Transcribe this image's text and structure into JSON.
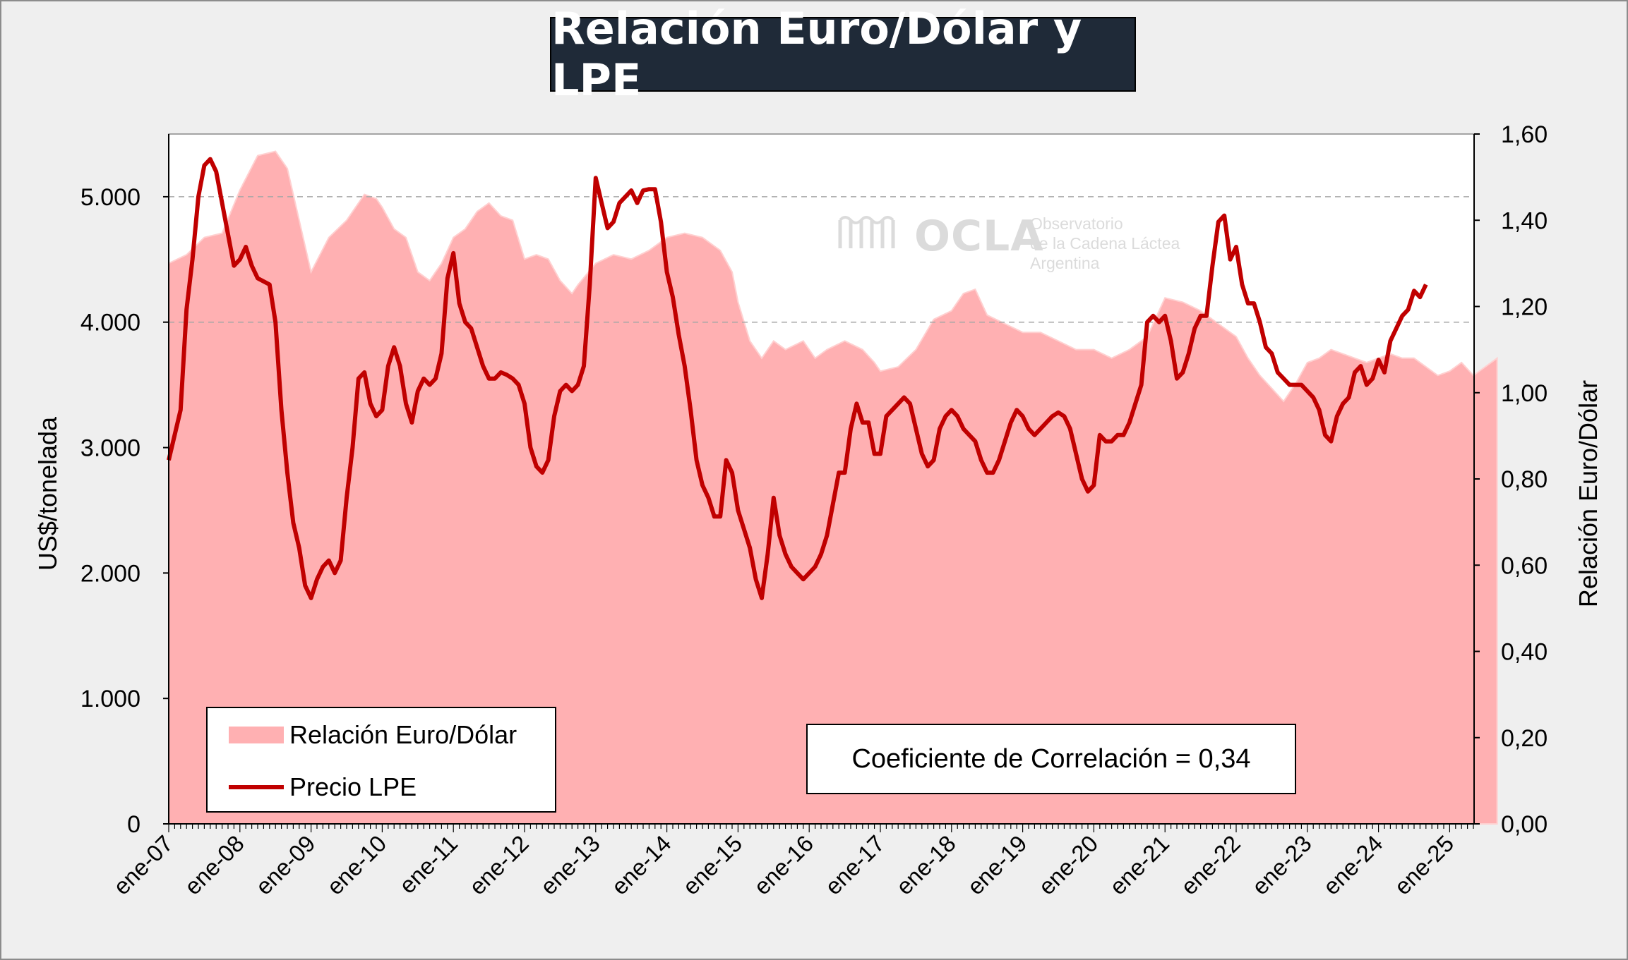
{
  "title": "Relación Euro/Dólar y LPE",
  "watermark": {
    "name": "OCLA",
    "line1": "Observatorio",
    "line2": "de la Cadena Láctea",
    "line3": "Argentina"
  },
  "legend": {
    "area_label": "Relación Euro/Dólar",
    "line_label": "Precio LPE"
  },
  "annotation": "Coeficiente de Correlación = 0,34",
  "colors": {
    "area": "#ffb0b2",
    "line": "#c00000",
    "title_bg": "#1f2a38",
    "plot_bg": "#ffffff",
    "outer_bg": "#efefef"
  },
  "chart_data": {
    "type": "line",
    "title": "Relación Euro/Dólar y LPE",
    "ylabel": "US$/tonelada",
    "ylabel_right": "Relación Euro/Dólar",
    "ylim": [
      0,
      5500
    ],
    "ylim_right": [
      0,
      1.6
    ],
    "yticks": [
      "0",
      "1.000",
      "2.000",
      "3.000",
      "4.000",
      "5.000"
    ],
    "yticks_right": [
      "0,00",
      "0,20",
      "0,40",
      "0,60",
      "0,80",
      "1,00",
      "1,20",
      "1,40",
      "1,60"
    ],
    "xticks": [
      "ene-07",
      "ene-08",
      "ene-09",
      "ene-10",
      "ene-11",
      "ene-12",
      "ene-13",
      "ene-14",
      "ene-15",
      "ene-16",
      "ene-17",
      "ene-18",
      "ene-19",
      "ene-20",
      "ene-21",
      "ene-22",
      "ene-23",
      "ene-24",
      "ene-25"
    ],
    "x_start": "ene-07",
    "grid": "horizontal dashed at 4.000 and 5.000",
    "series": [
      {
        "name": "Relación Euro/Dólar",
        "kind": "area",
        "axis": "right",
        "points": [
          [
            0,
            1.3
          ],
          [
            3,
            1.32
          ],
          [
            6,
            1.36
          ],
          [
            9,
            1.37
          ],
          [
            12,
            1.47
          ],
          [
            15,
            1.55
          ],
          [
            18,
            1.56
          ],
          [
            20,
            1.52
          ],
          [
            22,
            1.4
          ],
          [
            24,
            1.28
          ],
          [
            27,
            1.36
          ],
          [
            30,
            1.4
          ],
          [
            33,
            1.46
          ],
          [
            35,
            1.45
          ],
          [
            36,
            1.43
          ],
          [
            38,
            1.38
          ],
          [
            40,
            1.36
          ],
          [
            42,
            1.28
          ],
          [
            44,
            1.26
          ],
          [
            46,
            1.3
          ],
          [
            48,
            1.36
          ],
          [
            50,
            1.38
          ],
          [
            52,
            1.42
          ],
          [
            54,
            1.44
          ],
          [
            56,
            1.41
          ],
          [
            58,
            1.4
          ],
          [
            60,
            1.31
          ],
          [
            62,
            1.32
          ],
          [
            64,
            1.31
          ],
          [
            66,
            1.26
          ],
          [
            68,
            1.23
          ],
          [
            69,
            1.25
          ],
          [
            72,
            1.3
          ],
          [
            75,
            1.32
          ],
          [
            78,
            1.31
          ],
          [
            81,
            1.33
          ],
          [
            84,
            1.36
          ],
          [
            87,
            1.37
          ],
          [
            90,
            1.36
          ],
          [
            93,
            1.33
          ],
          [
            95,
            1.28
          ],
          [
            96,
            1.21
          ],
          [
            98,
            1.12
          ],
          [
            100,
            1.08
          ],
          [
            102,
            1.12
          ],
          [
            104,
            1.1
          ],
          [
            107,
            1.12
          ],
          [
            109,
            1.08
          ],
          [
            111,
            1.1
          ],
          [
            114,
            1.12
          ],
          [
            117,
            1.1
          ],
          [
            119,
            1.07
          ],
          [
            120,
            1.05
          ],
          [
            123,
            1.06
          ],
          [
            126,
            1.1
          ],
          [
            129,
            1.17
          ],
          [
            132,
            1.19
          ],
          [
            134,
            1.23
          ],
          [
            136,
            1.24
          ],
          [
            138,
            1.18
          ],
          [
            141,
            1.16
          ],
          [
            144,
            1.14
          ],
          [
            147,
            1.14
          ],
          [
            150,
            1.12
          ],
          [
            153,
            1.1
          ],
          [
            156,
            1.1
          ],
          [
            159,
            1.08
          ],
          [
            162,
            1.1
          ],
          [
            165,
            1.13
          ],
          [
            168,
            1.22
          ],
          [
            171,
            1.21
          ],
          [
            174,
            1.19
          ],
          [
            177,
            1.16
          ],
          [
            180,
            1.13
          ],
          [
            182,
            1.08
          ],
          [
            184,
            1.04
          ],
          [
            186,
            1.01
          ],
          [
            188,
            0.98
          ],
          [
            190,
            1.02
          ],
          [
            192,
            1.07
          ],
          [
            194,
            1.08
          ],
          [
            196,
            1.1
          ],
          [
            198,
            1.09
          ],
          [
            200,
            1.08
          ],
          [
            202,
            1.07
          ],
          [
            204,
            1.08
          ],
          [
            206,
            1.09
          ],
          [
            208,
            1.08
          ],
          [
            210,
            1.08
          ],
          [
            212,
            1.06
          ],
          [
            214,
            1.04
          ],
          [
            216,
            1.05
          ],
          [
            218,
            1.07
          ],
          [
            220,
            1.04
          ],
          [
            222,
            1.06
          ],
          [
            224,
            1.08
          ]
        ]
      },
      {
        "name": "Precio LPE",
        "kind": "line",
        "axis": "left",
        "points": [
          [
            0,
            2900
          ],
          [
            2,
            3300
          ],
          [
            3,
            4100
          ],
          [
            4,
            4500
          ],
          [
            5,
            5000
          ],
          [
            6,
            5250
          ],
          [
            7,
            5300
          ],
          [
            8,
            5200
          ],
          [
            9,
            4950
          ],
          [
            10,
            4700
          ],
          [
            11,
            4450
          ],
          [
            12,
            4500
          ],
          [
            13,
            4600
          ],
          [
            14,
            4450
          ],
          [
            15,
            4350
          ],
          [
            17,
            4300
          ],
          [
            18,
            4000
          ],
          [
            19,
            3300
          ],
          [
            20,
            2800
          ],
          [
            21,
            2400
          ],
          [
            22,
            2200
          ],
          [
            23,
            1900
          ],
          [
            24,
            1800
          ],
          [
            25,
            1950
          ],
          [
            26,
            2050
          ],
          [
            27,
            2100
          ],
          [
            28,
            2000
          ],
          [
            29,
            2100
          ],
          [
            30,
            2600
          ],
          [
            31,
            3000
          ],
          [
            32,
            3550
          ],
          [
            33,
            3600
          ],
          [
            34,
            3350
          ],
          [
            35,
            3250
          ],
          [
            36,
            3300
          ],
          [
            37,
            3650
          ],
          [
            38,
            3800
          ],
          [
            39,
            3650
          ],
          [
            40,
            3350
          ],
          [
            41,
            3200
          ],
          [
            42,
            3450
          ],
          [
            43,
            3550
          ],
          [
            44,
            3500
          ],
          [
            45,
            3550
          ],
          [
            46,
            3750
          ],
          [
            47,
            4350
          ],
          [
            48,
            4550
          ],
          [
            49,
            4150
          ],
          [
            50,
            4000
          ],
          [
            51,
            3950
          ],
          [
            52,
            3800
          ],
          [
            53,
            3650
          ],
          [
            54,
            3550
          ],
          [
            55,
            3550
          ],
          [
            56,
            3600
          ],
          [
            57,
            3580
          ],
          [
            58,
            3550
          ],
          [
            59,
            3500
          ],
          [
            60,
            3350
          ],
          [
            61,
            3000
          ],
          [
            62,
            2850
          ],
          [
            63,
            2800
          ],
          [
            64,
            2900
          ],
          [
            65,
            3250
          ],
          [
            66,
            3450
          ],
          [
            67,
            3500
          ],
          [
            68,
            3450
          ],
          [
            69,
            3500
          ],
          [
            70,
            3650
          ],
          [
            71,
            4300
          ],
          [
            72,
            5150
          ],
          [
            73,
            4950
          ],
          [
            74,
            4750
          ],
          [
            75,
            4800
          ],
          [
            76,
            4950
          ],
          [
            77,
            5000
          ],
          [
            78,
            5050
          ],
          [
            79,
            4950
          ],
          [
            80,
            5050
          ],
          [
            81,
            5060
          ],
          [
            82,
            5060
          ],
          [
            83,
            4800
          ],
          [
            84,
            4400
          ],
          [
            85,
            4200
          ],
          [
            86,
            3900
          ],
          [
            87,
            3650
          ],
          [
            88,
            3300
          ],
          [
            89,
            2900
          ],
          [
            90,
            2700
          ],
          [
            91,
            2600
          ],
          [
            92,
            2450
          ],
          [
            93,
            2450
          ],
          [
            94,
            2900
          ],
          [
            95,
            2800
          ],
          [
            96,
            2500
          ],
          [
            97,
            2350
          ],
          [
            98,
            2200
          ],
          [
            99,
            1950
          ],
          [
            100,
            1800
          ],
          [
            101,
            2150
          ],
          [
            102,
            2600
          ],
          [
            103,
            2300
          ],
          [
            104,
            2150
          ],
          [
            105,
            2050
          ],
          [
            106,
            2000
          ],
          [
            107,
            1950
          ],
          [
            108,
            2000
          ],
          [
            109,
            2050
          ],
          [
            110,
            2150
          ],
          [
            111,
            2300
          ],
          [
            112,
            2550
          ],
          [
            113,
            2800
          ],
          [
            114,
            2800
          ],
          [
            115,
            3150
          ],
          [
            116,
            3350
          ],
          [
            117,
            3200
          ],
          [
            118,
            3200
          ],
          [
            119,
            2950
          ],
          [
            120,
            2950
          ],
          [
            121,
            3250
          ],
          [
            122,
            3300
          ],
          [
            123,
            3350
          ],
          [
            124,
            3400
          ],
          [
            125,
            3350
          ],
          [
            126,
            3150
          ],
          [
            127,
            2950
          ],
          [
            128,
            2850
          ],
          [
            129,
            2900
          ],
          [
            130,
            3150
          ],
          [
            131,
            3250
          ],
          [
            132,
            3300
          ],
          [
            133,
            3250
          ],
          [
            134,
            3150
          ],
          [
            135,
            3100
          ],
          [
            136,
            3050
          ],
          [
            137,
            2900
          ],
          [
            138,
            2800
          ],
          [
            139,
            2800
          ],
          [
            140,
            2900
          ],
          [
            141,
            3050
          ],
          [
            142,
            3200
          ],
          [
            143,
            3300
          ],
          [
            144,
            3250
          ],
          [
            145,
            3150
          ],
          [
            146,
            3100
          ],
          [
            147,
            3150
          ],
          [
            148,
            3200
          ],
          [
            149,
            3250
          ],
          [
            150,
            3280
          ],
          [
            151,
            3250
          ],
          [
            152,
            3150
          ],
          [
            153,
            2950
          ],
          [
            154,
            2750
          ],
          [
            155,
            2650
          ],
          [
            156,
            2700
          ],
          [
            157,
            3100
          ],
          [
            158,
            3050
          ],
          [
            159,
            3050
          ],
          [
            160,
            3100
          ],
          [
            161,
            3100
          ],
          [
            162,
            3200
          ],
          [
            163,
            3350
          ],
          [
            164,
            3500
          ],
          [
            165,
            4000
          ],
          [
            166,
            4050
          ],
          [
            167,
            4000
          ],
          [
            168,
            4050
          ],
          [
            169,
            3850
          ],
          [
            170,
            3550
          ],
          [
            171,
            3600
          ],
          [
            172,
            3750
          ],
          [
            173,
            3950
          ],
          [
            174,
            4050
          ],
          [
            175,
            4050
          ],
          [
            176,
            4450
          ],
          [
            177,
            4800
          ],
          [
            178,
            4850
          ],
          [
            179,
            4500
          ],
          [
            180,
            4600
          ],
          [
            181,
            4300
          ],
          [
            182,
            4150
          ],
          [
            183,
            4150
          ],
          [
            184,
            4000
          ],
          [
            185,
            3800
          ],
          [
            186,
            3750
          ],
          [
            187,
            3600
          ],
          [
            188,
            3550
          ],
          [
            189,
            3500
          ],
          [
            190,
            3500
          ],
          [
            191,
            3500
          ],
          [
            192,
            3450
          ],
          [
            193,
            3400
          ],
          [
            194,
            3300
          ],
          [
            195,
            3100
          ],
          [
            196,
            3050
          ],
          [
            197,
            3250
          ],
          [
            198,
            3350
          ],
          [
            199,
            3400
          ],
          [
            200,
            3600
          ],
          [
            201,
            3650
          ],
          [
            202,
            3500
          ],
          [
            203,
            3550
          ],
          [
            204,
            3700
          ],
          [
            205,
            3600
          ],
          [
            206,
            3850
          ],
          [
            207,
            3950
          ],
          [
            208,
            4050
          ],
          [
            209,
            4100
          ],
          [
            210,
            4250
          ],
          [
            211,
            4200
          ],
          [
            212,
            4300
          ]
        ]
      }
    ]
  }
}
